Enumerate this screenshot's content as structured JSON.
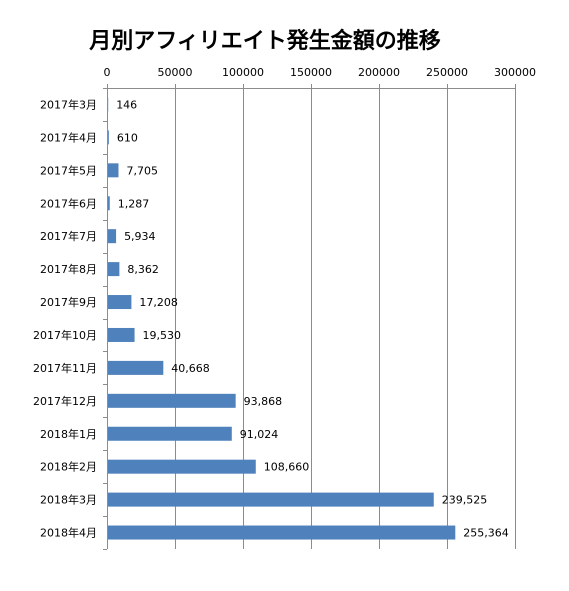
{
  "chart_data": {
    "type": "bar",
    "orientation": "horizontal",
    "title": "月別アフィリエイト発生金額の推移",
    "xlabel": "",
    "ylabel": "",
    "xlim": [
      0,
      300000
    ],
    "x_ticks": [
      "0",
      "50000",
      "100000",
      "150000",
      "200000",
      "250000",
      "300000"
    ],
    "x_axis_position": "top",
    "grid": true,
    "legend": "none",
    "bar_color": "#4F81BD",
    "categories": [
      "2017年3月",
      "2017年4月",
      "2017年5月",
      "2017年6月",
      "2017年7月",
      "2017年8月",
      "2017年9月",
      "2017年10月",
      "2017年11月",
      "2017年12月",
      "2018年1月",
      "2018年2月",
      "2018年3月",
      "2018年4月"
    ],
    "values": [
      146,
      610,
      7705,
      1287,
      5934,
      8362,
      17208,
      19530,
      40668,
      93868,
      91024,
      108660,
      239525,
      255364
    ],
    "data_labels": [
      "146",
      "610",
      "7,705",
      "1,287",
      "5,934",
      "8,362",
      "17,208",
      "19,530",
      "40,668",
      "93,868",
      "91,024",
      "108,660",
      "239,525",
      "255,364"
    ]
  }
}
